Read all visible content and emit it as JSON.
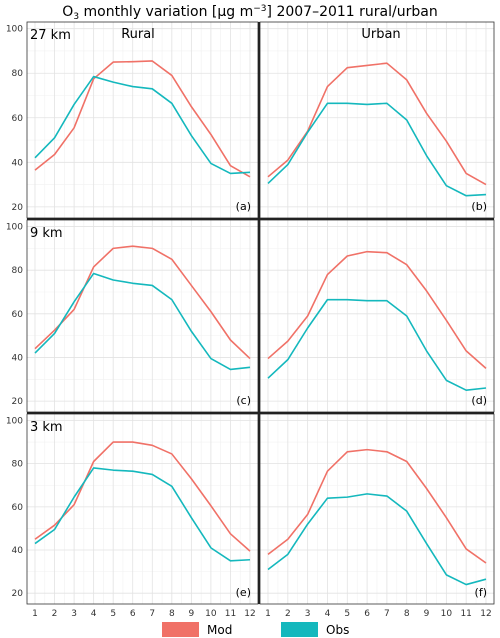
{
  "title": {
    "o": "O",
    "sub3": "3",
    "mid": " monthly variation [µg m",
    "supneg3": "−3",
    "end": "] 2007–2011 rural/urban"
  },
  "legend": [
    {
      "name": "Mod",
      "color": "#F07167"
    },
    {
      "name": "Obs",
      "color": "#14B8BD"
    }
  ],
  "chart_data": {
    "type": "line",
    "x": [
      1,
      2,
      3,
      4,
      5,
      6,
      7,
      8,
      9,
      10,
      11,
      12
    ],
    "xticks": [
      "1",
      "2",
      "3",
      "4",
      "5",
      "6",
      "7",
      "8",
      "9",
      "10",
      "11",
      "12"
    ],
    "ylim": [
      15,
      103
    ],
    "yticks": [
      20,
      40,
      60,
      80,
      100
    ],
    "grid": true,
    "legend_position": "bottom",
    "colors": {
      "Mod": "#F07167",
      "Obs": "#14B8BD"
    },
    "panels": [
      {
        "res": "27 km",
        "column": "Rural",
        "label": "(a)",
        "series": [
          {
            "name": "Mod",
            "values": [
              36.5,
              43.5,
              55.5,
              77.5,
              85,
              85.2,
              85.5,
              79,
              65,
              52.5,
              38.5,
              33.5
            ]
          },
          {
            "name": "Obs",
            "values": [
              42,
              51,
              66,
              78.5,
              76,
              74,
              73,
              66.5,
              52,
              39.5,
              35,
              35.5
            ]
          }
        ]
      },
      {
        "res": "",
        "column": "Urban",
        "label": "(b)",
        "series": [
          {
            "name": "Mod",
            "values": [
              33.5,
              41,
              54,
              74,
              82.5,
              83.5,
              84.5,
              77,
              62,
              49.5,
              35,
              30
            ]
          },
          {
            "name": "Obs",
            "values": [
              30.5,
              39,
              53.5,
              66.5,
              66.5,
              66,
              66.5,
              59,
              43,
              29.5,
              25,
              25.5
            ]
          }
        ]
      },
      {
        "res": "9 km",
        "column": "",
        "label": "(c)",
        "series": [
          {
            "name": "Mod",
            "values": [
              44,
              52.5,
              62,
              81.5,
              90,
              91,
              90,
              85,
              73,
              61,
              48,
              39.5
            ]
          },
          {
            "name": "Obs",
            "values": [
              42,
              51,
              65.5,
              78.5,
              75.5,
              74,
              73,
              66.5,
              52,
              39.5,
              34.5,
              35.5
            ]
          }
        ]
      },
      {
        "res": "",
        "column": "",
        "label": "(d)",
        "series": [
          {
            "name": "Mod",
            "values": [
              39.5,
              47.5,
              59,
              78,
              86.5,
              88.5,
              88,
              82.5,
              70.5,
              57,
              43,
              35
            ]
          },
          {
            "name": "Obs",
            "values": [
              30.5,
              39,
              53.5,
              66.5,
              66.5,
              66,
              66,
              59,
              43,
              29.5,
              25,
              26
            ]
          }
        ]
      },
      {
        "res": "3 km",
        "column": "",
        "label": "(e)",
        "series": [
          {
            "name": "Mod",
            "values": [
              45,
              51.5,
              61,
              81,
              90,
              90,
              88.5,
              84.5,
              73,
              60.5,
              47.5,
              39.5
            ]
          },
          {
            "name": "Obs",
            "values": [
              43,
              49.5,
              64.5,
              78,
              77,
              76.5,
              75,
              69.5,
              55,
              41,
              35,
              35.5
            ]
          }
        ]
      },
      {
        "res": "",
        "column": "",
        "label": "(f)",
        "series": [
          {
            "name": "Mod",
            "values": [
              38,
              45,
              56.5,
              76.5,
              85.5,
              86.5,
              85.5,
              81,
              68.5,
              55,
              40.5,
              34
            ]
          },
          {
            "name": "Obs",
            "values": [
              31,
              38,
              52,
              64,
              64.5,
              66,
              65,
              58,
              43,
              28.5,
              24,
              26.5
            ]
          }
        ]
      }
    ]
  }
}
